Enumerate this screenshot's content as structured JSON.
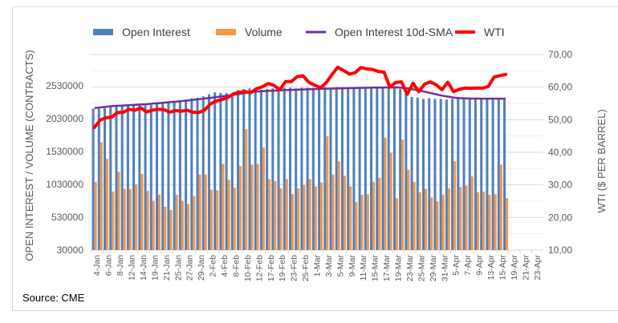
{
  "chart_data": {
    "type": "bar",
    "title": "",
    "source": "Source: CME",
    "legend": {
      "placement": "top",
      "entries": [
        {
          "name": "Open Interest",
          "kind": "bar",
          "color": "#4f81bd"
        },
        {
          "name": "Volume",
          "kind": "bar",
          "color": "#f79646"
        },
        {
          "name": "Open Interest 10d-SMA",
          "kind": "line",
          "color": "#7030a0"
        },
        {
          "name": "WTI",
          "kind": "line",
          "color": "#ff0000"
        }
      ]
    },
    "ylabel_left": "OPEN INTEREST / VOLUME (CONTRACTS)",
    "ylabel_right": "WTI ($ PER BARREL)",
    "ylim_left": [
      30000,
      2780000
    ],
    "yticks_left": [
      "30000",
      "530000",
      "1030000",
      "1530000",
      "2030000",
      "2530000"
    ],
    "ylim_right": [
      10,
      70
    ],
    "yticks_right": [
      "10,00",
      "20,00",
      "30,00",
      "40,00",
      "50,00",
      "60,00",
      "70,00"
    ],
    "grid": true,
    "xtick_labels": [
      "4-Jan",
      "6-Jan",
      "8-Jan",
      "12-Jan",
      "14-Jan",
      "19-Jan",
      "21-Jan",
      "25-Jan",
      "27-Jan",
      "29-Jan",
      "2-Feb",
      "4-Feb",
      "8-Feb",
      "10-Feb",
      "12-Feb",
      "17-Feb",
      "19-Feb",
      "23-Feb",
      "25-Feb",
      "1-Mar",
      "3-Mar",
      "5-Mar",
      "9-Mar",
      "11-Mar",
      "15-Mar",
      "17-Mar",
      "19-Mar",
      "23-Mar",
      "25-Mar",
      "29-Mar",
      "31-Mar",
      "5-Apr",
      "7-Apr",
      "9-Apr",
      "13-Apr",
      "15-Apr",
      "19-Apr",
      "21-Apr",
      "23-Apr"
    ],
    "total_slots": 78,
    "x": [
      "4-Jan",
      "5-Jan",
      "6-Jan",
      "7-Jan",
      "8-Jan",
      "11-Jan",
      "12-Jan",
      "13-Jan",
      "14-Jan",
      "15-Jan",
      "19-Jan",
      "20-Jan",
      "21-Jan",
      "22-Jan",
      "25-Jan",
      "26-Jan",
      "27-Jan",
      "28-Jan",
      "29-Jan",
      "1-Feb",
      "2-Feb",
      "3-Feb",
      "4-Feb",
      "5-Feb",
      "8-Feb",
      "9-Feb",
      "10-Feb",
      "11-Feb",
      "12-Feb",
      "16-Feb",
      "17-Feb",
      "18-Feb",
      "19-Feb",
      "22-Feb",
      "23-Feb",
      "24-Feb",
      "25-Feb",
      "26-Feb",
      "1-Mar",
      "2-Mar",
      "3-Mar",
      "4-Mar",
      "5-Mar",
      "8-Mar",
      "9-Mar",
      "10-Mar",
      "11-Mar",
      "12-Mar",
      "15-Mar",
      "16-Mar",
      "17-Mar",
      "18-Mar",
      "19-Mar",
      "22-Mar",
      "23-Mar",
      "24-Mar",
      "25-Mar",
      "26-Mar",
      "29-Mar",
      "30-Mar",
      "31-Mar",
      "1-Apr",
      "5-Apr",
      "6-Apr",
      "7-Apr",
      "8-Apr",
      "9-Apr",
      "12-Apr",
      "13-Apr",
      "14-Apr",
      "15-Apr",
      "16-Apr"
    ],
    "series": [
      {
        "name": "Open Interest",
        "axis": "left",
        "type": "bar",
        "values": [
          2180000,
          2180000,
          2190000,
          2210000,
          2240000,
          2230000,
          2220000,
          2240000,
          2240000,
          2230000,
          2240000,
          2270000,
          2280000,
          2290000,
          2300000,
          2310000,
          2320000,
          2340000,
          2350000,
          2370000,
          2400000,
          2430000,
          2420000,
          2420000,
          2410000,
          2460000,
          2480000,
          2490000,
          2480000,
          2470000,
          2480000,
          2490000,
          2490000,
          2500000,
          2500000,
          2490000,
          2500000,
          2500000,
          2500000,
          2510000,
          2510000,
          2500000,
          2510000,
          2510000,
          2500000,
          2500000,
          2510000,
          2510000,
          2500000,
          2500000,
          2510000,
          2520000,
          2520000,
          2480000,
          2410000,
          2360000,
          2350000,
          2330000,
          2340000,
          2330000,
          2330000,
          2320000,
          2330000,
          2340000,
          2330000,
          2340000,
          2330000,
          2330000,
          2330000,
          2320000,
          2340000,
          2340000
        ]
      },
      {
        "name": "Volume",
        "axis": "left",
        "type": "bar",
        "values": [
          1070000,
          1670000,
          1420000,
          920000,
          1220000,
          960000,
          960000,
          1030000,
          1190000,
          930000,
          780000,
          870000,
          690000,
          640000,
          870000,
          780000,
          730000,
          850000,
          1180000,
          1180000,
          950000,
          940000,
          1340000,
          1100000,
          980000,
          1310000,
          1870000,
          1330000,
          1340000,
          1590000,
          1110000,
          1080000,
          970000,
          1110000,
          880000,
          970000,
          1020000,
          1110000,
          1000000,
          1060000,
          1760000,
          1180000,
          1380000,
          1160000,
          1000000,
          760000,
          870000,
          880000,
          1070000,
          1130000,
          1740000,
          1510000,
          820000,
          1710000,
          1250000,
          1070000,
          910000,
          960000,
          830000,
          770000,
          870000,
          970000,
          1380000,
          990000,
          1010000,
          1150000,
          910000,
          920000,
          870000,
          880000,
          1330000,
          820000
        ]
      },
      {
        "name": "Open Interest 10d-SMA",
        "axis": "left",
        "type": "line",
        "values": [
          2190000,
          2200000,
          2210000,
          2220000,
          2225000,
          2230000,
          2235000,
          2240000,
          2245000,
          2250000,
          2258000,
          2265000,
          2272000,
          2280000,
          2288000,
          2296000,
          2305000,
          2315000,
          2325000,
          2335000,
          2345000,
          2357000,
          2368000,
          2380000,
          2392000,
          2405000,
          2420000,
          2435000,
          2442000,
          2448000,
          2452000,
          2456000,
          2460000,
          2465000,
          2468000,
          2470000,
          2473000,
          2476000,
          2480000,
          2483000,
          2486000,
          2488000,
          2490000,
          2492000,
          2494000,
          2496000,
          2498000,
          2500000,
          2502000,
          2503000,
          2504000,
          2505000,
          2505000,
          2500000,
          2490000,
          2475000,
          2460000,
          2440000,
          2420000,
          2400000,
          2380000,
          2365000,
          2350000,
          2342000,
          2338000,
          2335000,
          2335000,
          2334000,
          2334000,
          2333000,
          2333000,
          2333000
        ]
      },
      {
        "name": "WTI",
        "axis": "right",
        "type": "line",
        "values": [
          47.6,
          49.9,
          50.6,
          50.8,
          52.2,
          52.3,
          53.2,
          52.9,
          53.6,
          52.4,
          52.9,
          53.2,
          53.1,
          52.3,
          52.8,
          52.6,
          52.9,
          52.3,
          52.2,
          52.9,
          54.8,
          55.7,
          56.2,
          56.8,
          57.9,
          58.4,
          58.6,
          58.3,
          59.5,
          60.1,
          61.1,
          60.5,
          59.2,
          61.7,
          61.7,
          63.2,
          63.5,
          61.5,
          60.6,
          59.8,
          61.3,
          63.8,
          66.1,
          65.1,
          64.0,
          64.4,
          66.0,
          65.6,
          65.4,
          64.8,
          64.6,
          60.0,
          61.4,
          61.6,
          57.8,
          61.2,
          58.6,
          60.9,
          61.6,
          60.7,
          59.2,
          61.5,
          58.6,
          59.3,
          59.7,
          59.6,
          59.7,
          59.7,
          60.2,
          63.1,
          63.5,
          63.9
        ]
      }
    ]
  }
}
